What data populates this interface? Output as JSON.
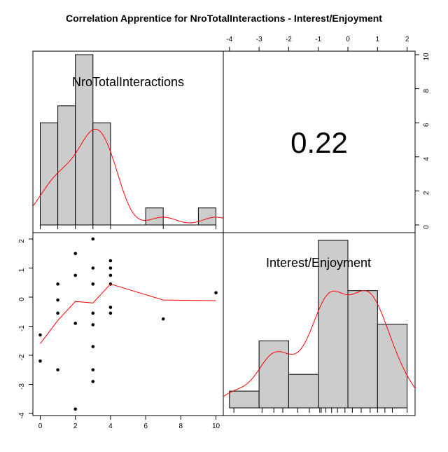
{
  "title": "Correlation Apprentice for NroTotalInteractions - Interest/Enjoyment",
  "colors": {
    "bar_fill": "#cccccc",
    "curve": "#ff0000",
    "axis": "#000000"
  },
  "chart_data": [
    {
      "type": "bar",
      "panel": "top-left",
      "label": "NroTotalInteractions",
      "bin_edges": [
        0,
        1,
        2,
        3,
        4,
        5,
        6,
        7,
        8,
        9,
        10
      ],
      "values": [
        6,
        7,
        10,
        6,
        0,
        0,
        1,
        0,
        0,
        1
      ],
      "ylim": [
        0,
        10
      ],
      "right_ticks": [
        0,
        2,
        4,
        6,
        8,
        10
      ],
      "density_curve": true
    },
    {
      "type": "table",
      "panel": "top-right",
      "correlation": "0.22"
    },
    {
      "type": "scatter",
      "panel": "bottom-left",
      "xlim": [
        -0.4,
        10.4
      ],
      "ylim": [
        -4,
        2
      ],
      "x_ticks": [
        0,
        2,
        4,
        6,
        8,
        10
      ],
      "y_ticks": [
        -4,
        -3,
        -2,
        -1,
        0,
        1,
        2
      ],
      "points": [
        [
          0,
          -1.3
        ],
        [
          0,
          -2.2
        ],
        [
          1,
          0.45
        ],
        [
          1,
          -0.1
        ],
        [
          1,
          -0.55
        ],
        [
          1,
          -2.5
        ],
        [
          2,
          1.5
        ],
        [
          2,
          0.75
        ],
        [
          2,
          -0.9
        ],
        [
          2,
          -3.85
        ],
        [
          3,
          2.0
        ],
        [
          3,
          1.0
        ],
        [
          3,
          0.45
        ],
        [
          3,
          -0.55
        ],
        [
          3,
          -0.95
        ],
        [
          3,
          -1.7
        ],
        [
          3,
          -2.5
        ],
        [
          3,
          -2.9
        ],
        [
          4,
          1.25
        ],
        [
          4,
          1.0
        ],
        [
          4,
          0.75
        ],
        [
          4,
          0.45
        ],
        [
          4,
          -0.35
        ],
        [
          4,
          -0.55
        ],
        [
          7,
          -0.75
        ],
        [
          10,
          0.15
        ]
      ],
      "smoother": [
        [
          0,
          -1.6
        ],
        [
          1,
          -0.8
        ],
        [
          2,
          -0.15
        ],
        [
          3,
          -0.2
        ],
        [
          4,
          0.45
        ],
        [
          7,
          -0.1
        ],
        [
          10,
          -0.12
        ]
      ]
    },
    {
      "type": "bar",
      "panel": "bottom-right",
      "label": "Interest/Enjoyment",
      "bin_edges": [
        -4,
        -3,
        -2,
        -1,
        0,
        1,
        2
      ],
      "values": [
        1,
        4,
        2,
        10,
        7,
        5
      ],
      "ylim": [
        0,
        10.5
      ],
      "top_ticks": [
        -4,
        -3,
        -2,
        -1,
        0,
        1,
        2
      ],
      "density_curve": true
    }
  ]
}
